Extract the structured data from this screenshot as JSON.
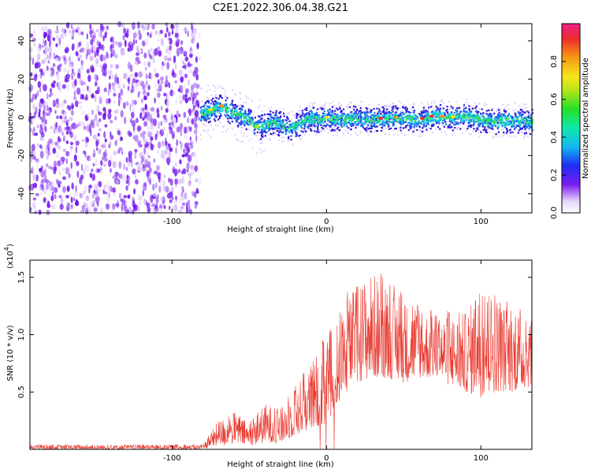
{
  "title": "C2E1.2022.306.04.38.G21",
  "chart_data": [
    {
      "type": "heatmap",
      "xlabel": "Height of straight line (km)",
      "ylabel": "Frequency (Hz)",
      "xlim": [
        -192,
        133
      ],
      "ylim": [
        -50,
        49
      ],
      "xticks": [
        -100,
        0,
        100
      ],
      "xtick_labels": [
        "-100",
        "0",
        "100"
      ],
      "yticks": [
        40,
        20,
        0,
        -20,
        -40
      ],
      "ytick_labels": [
        "40",
        "20",
        "0",
        "-20",
        "-40"
      ],
      "noise_region_x": [
        -192,
        -82
      ],
      "signal_trace": {
        "x": [
          -82,
          -75,
          -68,
          -62,
          -55,
          -50,
          -45,
          -40,
          -35,
          -30,
          -25,
          -20,
          -15,
          -10,
          -5,
          0,
          10,
          20,
          30,
          40,
          50,
          60,
          70,
          80,
          90,
          100,
          110,
          120,
          133
        ],
        "freq": [
          2,
          4,
          6,
          3,
          1,
          -2,
          -5,
          -4,
          -2,
          -3,
          -6,
          -4,
          -1,
          0,
          -1,
          0,
          -1,
          0,
          -1,
          0,
          0,
          -1,
          1,
          0,
          1,
          -1,
          -2,
          -1,
          -2
        ]
      },
      "colorbar": {
        "label": "Normalized spectral amplitude",
        "range": [
          0.0,
          1.0
        ],
        "ticks": [
          "0.0",
          "0.2",
          "0.4",
          "0.6",
          "0.8"
        ]
      }
    },
    {
      "type": "line",
      "xlabel": "Height of straight line (km)",
      "ylabel": "SNR (10 * v/v)",
      "yunit": "(x10^4)",
      "yunit_base": "(x10",
      "yunit_exp": "4",
      "yunit_close": ")",
      "xlim": [
        -192,
        133
      ],
      "ylim": [
        0,
        1.65
      ],
      "xticks": [
        -100,
        0,
        100
      ],
      "xtick_labels": [
        "-100",
        "0",
        "100"
      ],
      "yticks": [
        0.5,
        1.0,
        1.5
      ],
      "ytick_labels": [
        "0.5",
        "1.0",
        "1.5"
      ],
      "color": "#e8382e",
      "envelope": {
        "x": [
          -192,
          -90,
          -80,
          -75,
          -70,
          -60,
          -50,
          -40,
          -30,
          -20,
          -10,
          0,
          10,
          20,
          30,
          40,
          50,
          60,
          70,
          80,
          90,
          100,
          110,
          120,
          133
        ],
        "low": [
          0.0,
          0.0,
          0.0,
          0.02,
          0.02,
          0.05,
          0.03,
          0.06,
          0.05,
          0.12,
          0.18,
          0.22,
          0.45,
          0.58,
          0.62,
          0.62,
          0.58,
          0.62,
          0.62,
          0.55,
          0.5,
          0.45,
          0.5,
          0.5,
          0.55
        ],
        "high": [
          0.04,
          0.04,
          0.04,
          0.15,
          0.25,
          0.32,
          0.22,
          0.4,
          0.35,
          0.55,
          0.75,
          1.0,
          1.25,
          1.45,
          1.55,
          1.4,
          1.3,
          1.2,
          1.2,
          1.15,
          1.2,
          1.4,
          1.35,
          1.2,
          1.12
        ]
      }
    }
  ]
}
